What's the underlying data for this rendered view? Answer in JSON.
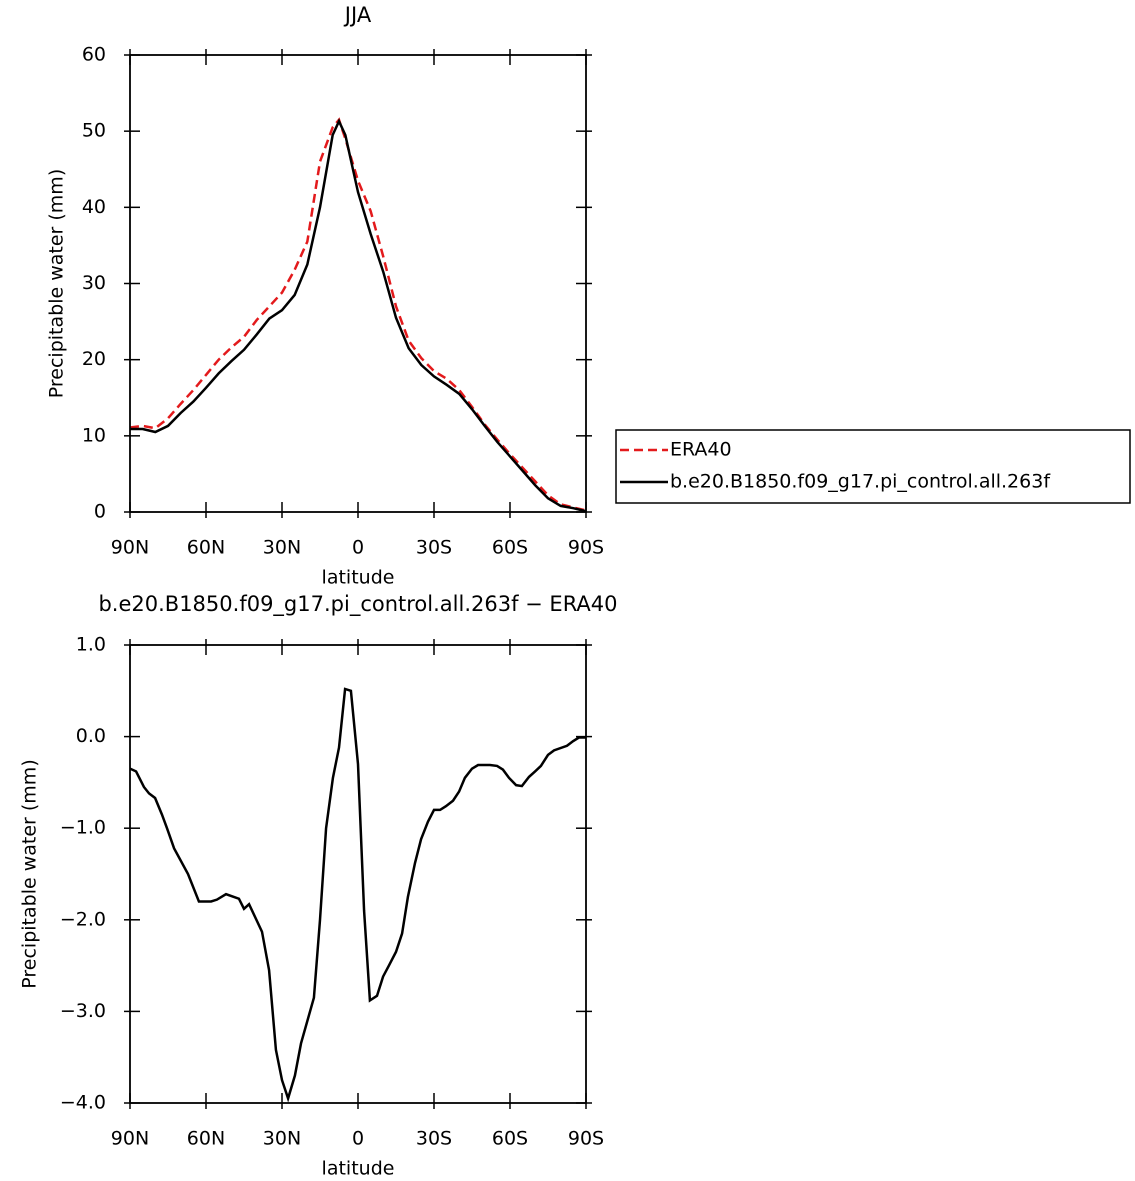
{
  "chart_data": [
    {
      "type": "line",
      "title": "JJA",
      "xlabel": "latitude",
      "ylabel": "Precipitable water (mm)",
      "x": [
        90,
        85,
        80,
        75,
        70,
        65,
        60,
        55,
        50,
        45,
        40,
        35,
        30,
        25,
        20,
        15,
        10,
        7.5,
        5,
        0,
        -5,
        -10,
        -15,
        -20,
        -25,
        -30,
        -35,
        -40,
        -45,
        -50,
        -55,
        -60,
        -65,
        -70,
        -75,
        -80,
        -85,
        -90
      ],
      "series": [
        {
          "name": "ERA40",
          "color": "#e31a1c",
          "dash": true,
          "values": [
            11.1,
            11.3,
            11,
            12.3,
            14.2,
            16,
            18,
            20,
            21.6,
            23,
            25.2,
            27,
            28.8,
            31.8,
            35.5,
            46,
            50.5,
            51.5,
            49,
            43.5,
            39.5,
            33.5,
            27,
            22.5,
            20.2,
            18.5,
            17.5,
            16,
            13.8,
            11.5,
            9.5,
            7.6,
            5.8,
            4,
            2.2,
            1,
            0.6,
            0.2
          ]
        },
        {
          "name": "b.e20.B1850.f09_g17.pi_control.all.263f",
          "color": "#000000",
          "dash": false,
          "values": [
            10.9,
            10.9,
            10.5,
            11.3,
            13,
            14.5,
            16.3,
            18.2,
            19.8,
            21.3,
            23.3,
            25.4,
            26.5,
            28.5,
            32.5,
            40,
            49.5,
            51.3,
            49.5,
            42,
            36.5,
            31.5,
            25.5,
            21.5,
            19.3,
            17.8,
            16.7,
            15.5,
            13.5,
            11.3,
            9.2,
            7.3,
            5.4,
            3.5,
            1.8,
            0.8,
            0.5,
            0.1
          ]
        }
      ],
      "xlim": [
        90,
        -90
      ],
      "xticks": [
        {
          "value": 90,
          "label": "90N"
        },
        {
          "value": 60,
          "label": "60N"
        },
        {
          "value": 30,
          "label": "30N"
        },
        0,
        {
          "value": -30,
          "label": "30S"
        },
        {
          "value": -60,
          "label": "60S"
        },
        {
          "value": -90,
          "label": "90S"
        }
      ],
      "ylim": [
        0,
        60
      ],
      "yticks": [
        0,
        10,
        20,
        30,
        40,
        50,
        60
      ],
      "legend": "outside right"
    },
    {
      "type": "line",
      "title": "b.e20.B1850.f09_g17.pi_control.all.263f − ERA40",
      "xlabel": "latitude",
      "ylabel": "Precipitable water (mm)",
      "x": [
        90,
        87.6,
        84.5,
        82.5,
        80.1,
        77.4,
        75.4,
        72.6,
        67.1,
        62.8,
        58,
        55.7,
        52.1,
        49,
        47,
        45,
        43,
        37.9,
        35.1,
        32.4,
        30,
        27.6,
        24.9,
        22.5,
        17.4,
        15,
        12.6,
        9.9,
        7.5,
        5.1,
        2.8,
        0,
        -2.4,
        -4.7,
        -7.5,
        -9.9,
        -12.2,
        -15,
        -17.4,
        -19.7,
        -22.5,
        -24.9,
        -27.6,
        -30,
        -32.4,
        -34.7,
        -37.5,
        -39.9,
        -42.2,
        -45,
        -47.4,
        -52.1,
        -54.9,
        -57.2,
        -59.6,
        -62.4,
        -64.7,
        -67.5,
        -69.9,
        -72.2,
        -75,
        -77.4,
        -82.5,
        -84.9,
        -87.2,
        -90
      ],
      "series": [
        {
          "color": "#000000",
          "dash": false,
          "values": [
            -0.35,
            -0.38,
            -0.55,
            -0.62,
            -0.67,
            -0.85,
            -1.0,
            -1.22,
            -1.5,
            -1.8,
            -1.8,
            -1.78,
            -1.72,
            -1.75,
            -1.77,
            -1.88,
            -1.83,
            -2.13,
            -2.55,
            -3.42,
            -3.75,
            -3.95,
            -3.7,
            -3.35,
            -2.85,
            -2.0,
            -1.0,
            -0.45,
            -0.12,
            0.52,
            0.5,
            -0.3,
            -1.9,
            -2.88,
            -2.83,
            -2.62,
            -2.5,
            -2.35,
            -2.15,
            -1.75,
            -1.38,
            -1.12,
            -0.93,
            -0.8,
            -0.8,
            -0.76,
            -0.7,
            -0.6,
            -0.45,
            -0.35,
            -0.31,
            -0.31,
            -0.32,
            -0.36,
            -0.45,
            -0.53,
            -0.54,
            -0.44,
            -0.38,
            -0.32,
            -0.2,
            -0.15,
            -0.1,
            -0.05,
            -0.01,
            -0.01
          ]
        }
      ],
      "xlim": [
        90,
        -90
      ],
      "xticks": [
        {
          "value": 90,
          "label": "90N"
        },
        {
          "value": 60,
          "label": "60N"
        },
        {
          "value": 30,
          "label": "30N"
        },
        0,
        {
          "value": -30,
          "label": "30S"
        },
        {
          "value": -60,
          "label": "60S"
        },
        {
          "value": -90,
          "label": "90S"
        }
      ],
      "ylim": [
        -4,
        1
      ],
      "yticks": [
        {
          "value": 1,
          "label": "1.0"
        },
        {
          "value": 0,
          "label": "0.0"
        },
        {
          "value": -1,
          "label": "−1.0"
        },
        {
          "value": -2,
          "label": "−2.0"
        },
        {
          "value": -3,
          "label": "−3.0"
        },
        {
          "value": -4,
          "label": "−4.0"
        }
      ]
    }
  ]
}
